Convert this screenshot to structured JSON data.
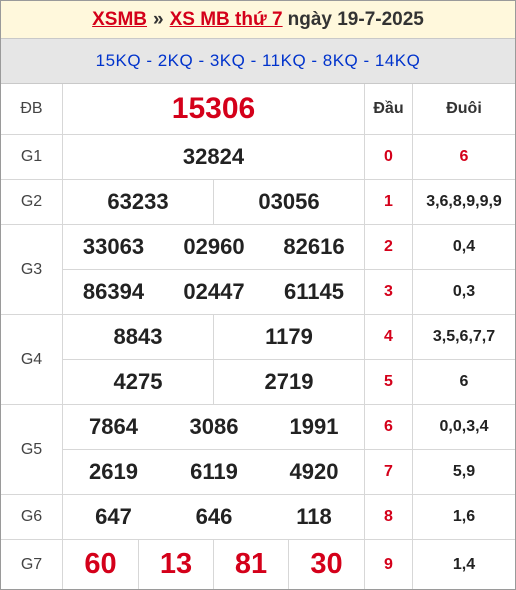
{
  "header": {
    "site": "XSMB",
    "sep": "»",
    "link": "XS MB thứ 7",
    "date": "ngày 19-7-2025"
  },
  "subheader": "15KQ - 2KQ - 3KQ - 11KQ - 8KQ - 14KQ",
  "columns": {
    "dau": "Đầu",
    "duoi": "Đuôi"
  },
  "prizes": {
    "db": {
      "label": "ĐB",
      "numbers": [
        "15306"
      ]
    },
    "g1": {
      "label": "G1",
      "numbers": [
        "32824"
      ]
    },
    "g2": {
      "label": "G2",
      "numbers": [
        "63233",
        "03056"
      ]
    },
    "g3": {
      "label": "G3",
      "numbers": [
        "33063",
        "02960",
        "82616",
        "86394",
        "02447",
        "61145"
      ]
    },
    "g4": {
      "label": "G4",
      "numbers": [
        "8843",
        "1179",
        "4275",
        "2719"
      ]
    },
    "g5": {
      "label": "G5",
      "numbers": [
        "7864",
        "3086",
        "1991",
        "2619",
        "6119",
        "4920"
      ]
    },
    "g6": {
      "label": "G6",
      "numbers": [
        "647",
        "646",
        "118"
      ]
    },
    "g7": {
      "label": "G7",
      "numbers": [
        "60",
        "13",
        "81",
        "30"
      ]
    }
  },
  "loto": [
    {
      "dau": "0",
      "duoi": "6"
    },
    {
      "dau": "1",
      "duoi": "3,6,8,9,9,9"
    },
    {
      "dau": "2",
      "duoi": "0,4"
    },
    {
      "dau": "3",
      "duoi": "0,3"
    },
    {
      "dau": "4",
      "duoi": "3,5,6,7,7"
    },
    {
      "dau": "5",
      "duoi": "6"
    },
    {
      "dau": "6",
      "duoi": "0,0,3,4"
    },
    {
      "dau": "7",
      "duoi": "5,9"
    },
    {
      "dau": "8",
      "duoi": "1,6"
    },
    {
      "dau": "9",
      "duoi": "1,4"
    }
  ],
  "colors": {
    "accent_red": "#d4001a",
    "blue": "#0033cc",
    "title_bg": "#fff8dc",
    "sub_bg": "#e6e6e6"
  }
}
